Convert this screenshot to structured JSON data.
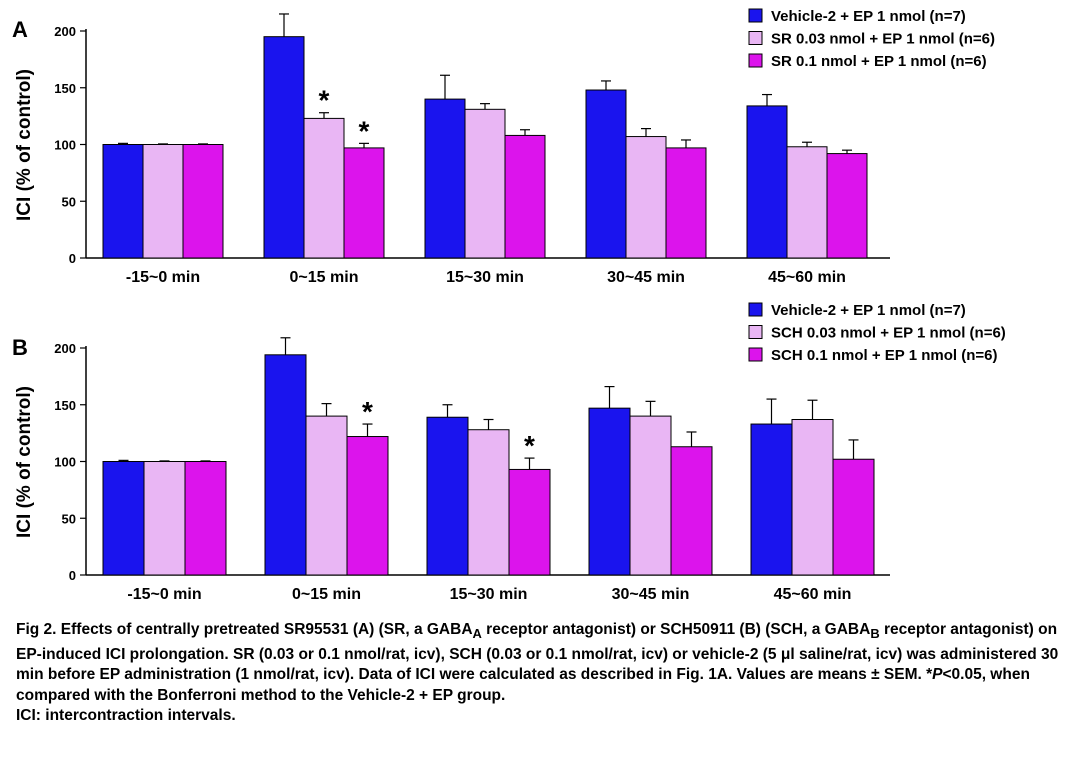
{
  "figure": {
    "panels": [
      {
        "letter": "A",
        "ylabel": "ICI (% of control)"
      },
      {
        "letter": "B",
        "ylabel": "ICI (% of control)"
      }
    ]
  },
  "chart_data": [
    {
      "type": "bar",
      "panel": "A",
      "categories": [
        "-15~0 min",
        "0~15 min",
        "15~30 min",
        "30~45 min",
        "45~60 min"
      ],
      "ylabel": "ICI (% of control)",
      "ylim": [
        0,
        200
      ],
      "yticks": [
        0,
        50,
        100,
        150,
        200
      ],
      "legend_position": "top-right",
      "series": [
        {
          "name": "Vehicle-2 + EP 1 nmol (n=7)",
          "color": "#1a14ee",
          "values": [
            100,
            195,
            140,
            148,
            134
          ],
          "errors": [
            1,
            20,
            21,
            8,
            10
          ],
          "sig": [
            false,
            false,
            false,
            false,
            false
          ]
        },
        {
          "name": "SR 0.03 nmol + EP 1 nmol (n=6)",
          "color": "#e9b6f4",
          "values": [
            100,
            123,
            131,
            107,
            98
          ],
          "errors": [
            0.5,
            5,
            5,
            7,
            4
          ],
          "sig": [
            false,
            true,
            false,
            false,
            false
          ]
        },
        {
          "name": "SR 0.1 nmol + EP 1 nmol (n=6)",
          "color": "#dc14ec",
          "values": [
            100,
            97,
            108,
            97,
            92
          ],
          "errors": [
            0.5,
            4,
            5,
            7,
            3
          ],
          "sig": [
            false,
            true,
            false,
            false,
            false
          ]
        }
      ],
      "sig_marker": "*"
    },
    {
      "type": "bar",
      "panel": "B",
      "categories": [
        "-15~0 min",
        "0~15 min",
        "15~30 min",
        "30~45 min",
        "45~60 min"
      ],
      "ylabel": "ICI (% of control)",
      "ylim": [
        0,
        200
      ],
      "yticks": [
        0,
        50,
        100,
        150,
        200
      ],
      "legend_position": "top-right",
      "series": [
        {
          "name": "Vehicle-2 + EP 1 nmol (n=7)",
          "color": "#1a14ee",
          "values": [
            100,
            194,
            139,
            147,
            133
          ],
          "errors": [
            1,
            15,
            11,
            19,
            22
          ],
          "sig": [
            false,
            false,
            false,
            false,
            false
          ]
        },
        {
          "name": "SCH 0.03 nmol + EP 1 nmol (n=6)",
          "color": "#e9b6f4",
          "values": [
            100,
            140,
            128,
            140,
            137
          ],
          "errors": [
            0.5,
            11,
            9,
            13,
            17
          ],
          "sig": [
            false,
            false,
            false,
            false,
            false
          ]
        },
        {
          "name": "SCH 0.1 nmol + EP 1 nmol (n=6)",
          "color": "#dc14ec",
          "values": [
            100,
            122,
            93,
            113,
            102
          ],
          "errors": [
            0.5,
            11,
            10,
            13,
            17
          ],
          "sig": [
            false,
            true,
            true,
            false,
            false
          ]
        }
      ],
      "sig_marker": "*"
    }
  ],
  "caption": {
    "p1_a": "Fig 2. Effects of centrally pretreated SR95531 (A) (SR, a GABA",
    "p1_sub1": "A",
    "p1_b": " receptor antagonist) or SCH50911 (B) (SCH, a GABA",
    "p1_sub2": "B",
    "p1_c": " receptor antagonist) on EP-induced ICI prolongation.  SR (0.03 or 0.1 nmol/rat, icv), SCH (0.03 or 0.1 nmol/rat, icv) or vehicle-2 (5 μl saline/rat, icv) was administered 30 min before EP administration (1 nmol/rat, icv). Data of ICI were calculated as described in Fig. 1A.  Values are means ± SEM.  *",
    "p1_p": "P",
    "p1_d": "<0.05, when compared with the Bonferroni method to the Vehicle-2 + EP group.",
    "p2": "ICI: intercontraction intervals."
  }
}
